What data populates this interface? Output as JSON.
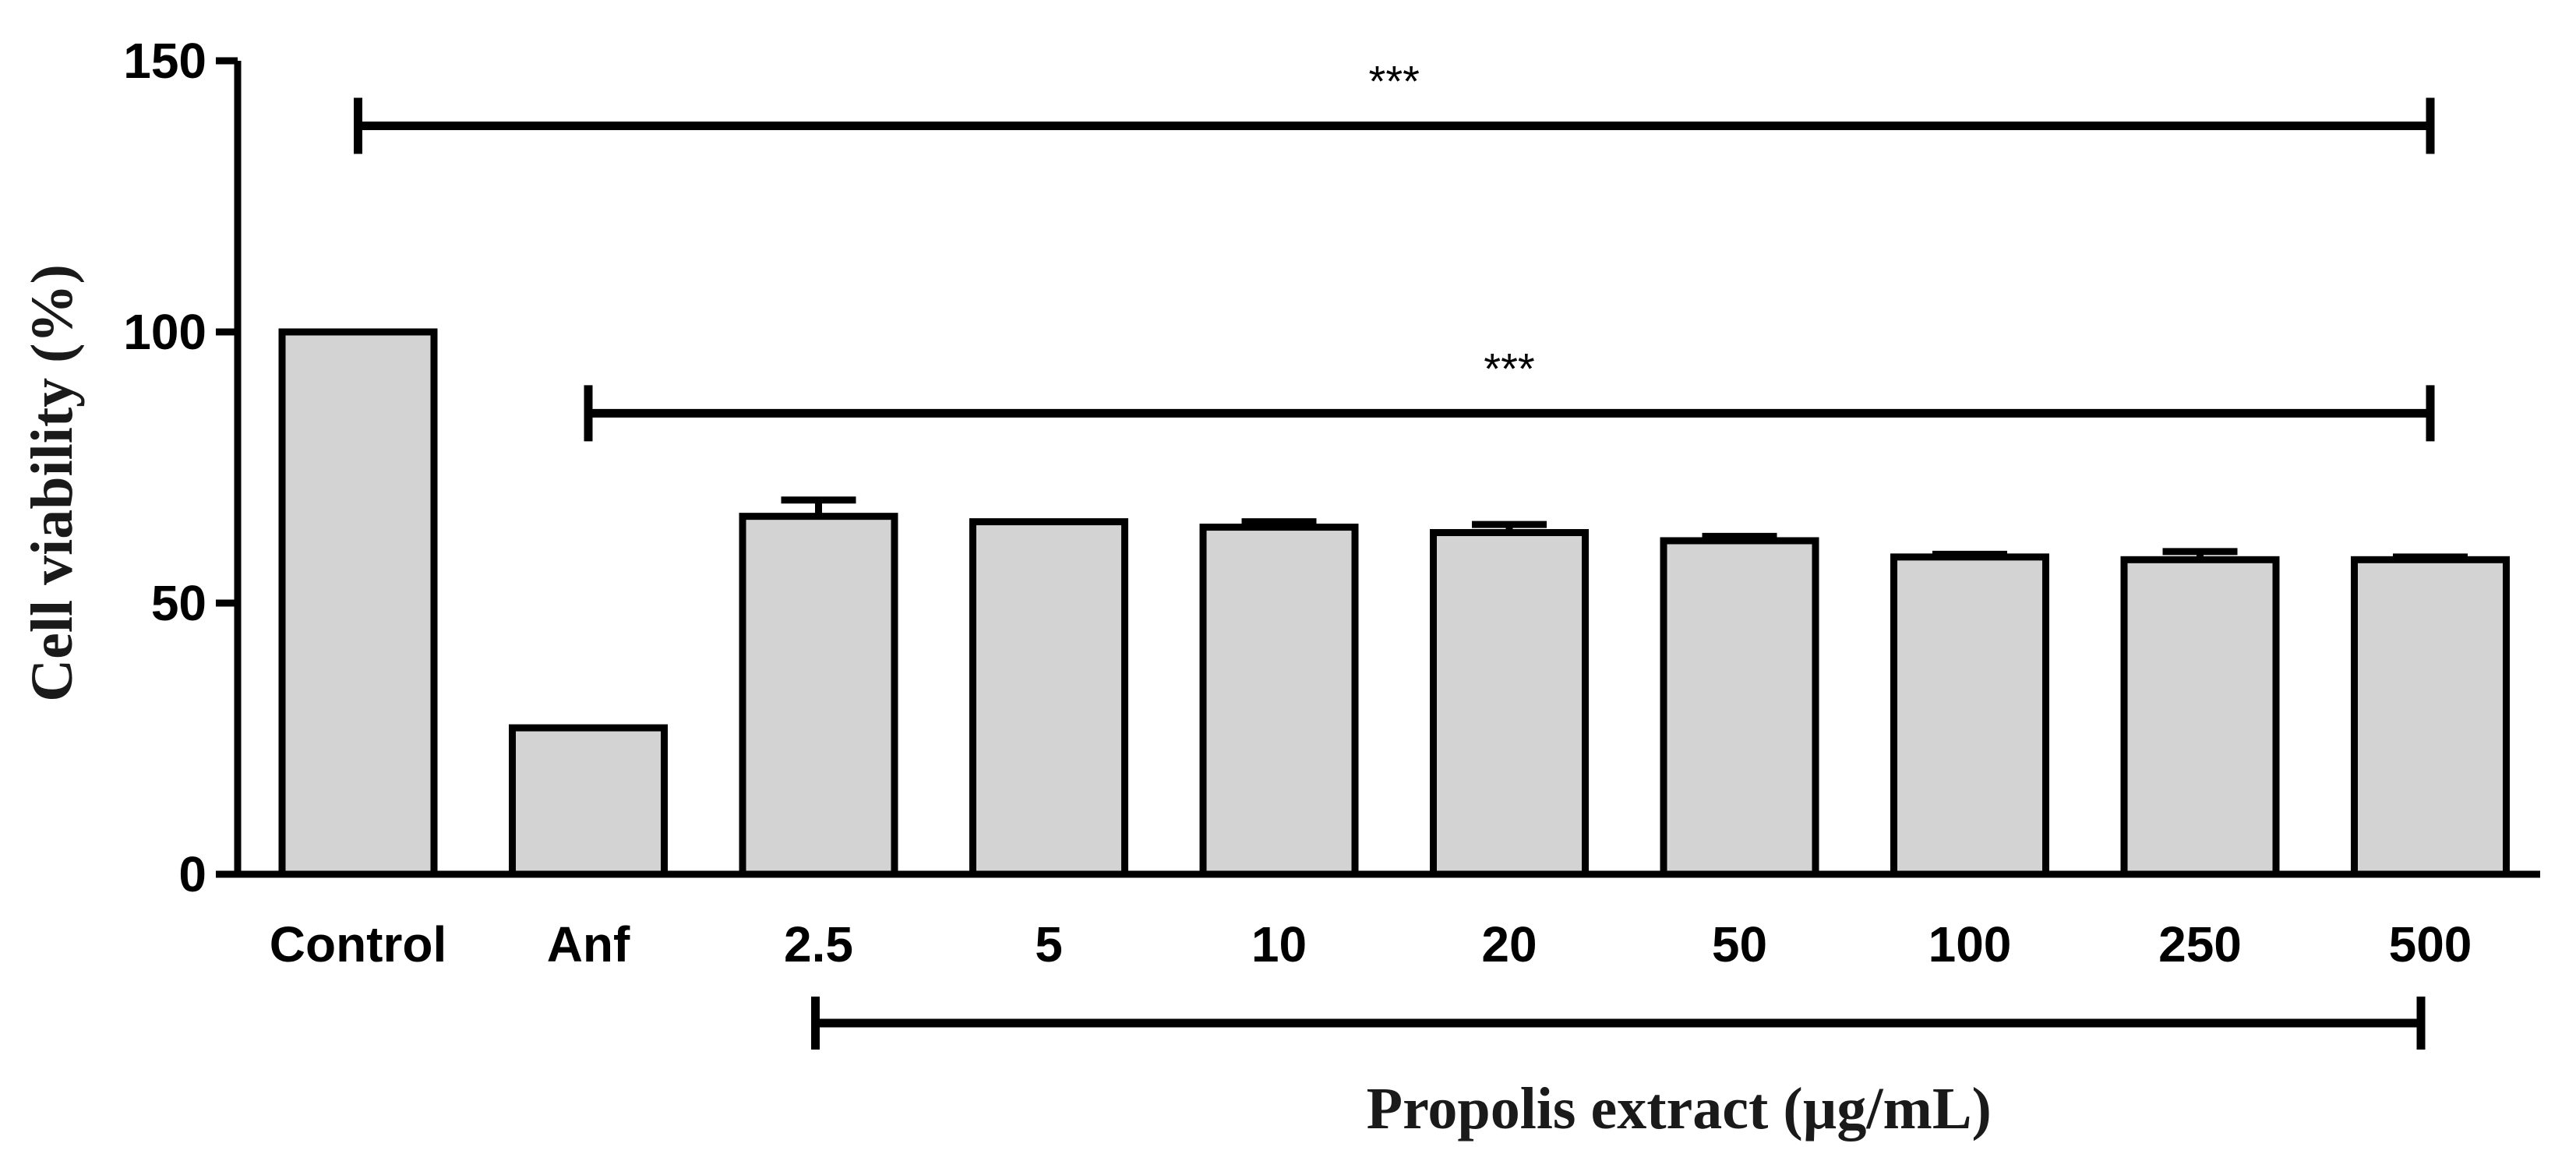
{
  "chart_data": {
    "type": "bar",
    "title": "",
    "xlabel": "",
    "ylabel": "Cell viability (%)",
    "ylim": [
      0,
      150
    ],
    "yticks": [
      0,
      50,
      100,
      150
    ],
    "grid": false,
    "categories": [
      "Control",
      "Anf",
      "2.5",
      "5",
      "10",
      "20",
      "50",
      "100",
      "250",
      "500"
    ],
    "values": [
      100,
      27,
      66,
      65,
      64,
      63,
      61.5,
      58.5,
      58,
      58
    ],
    "errors": [
      0,
      0,
      3,
      0,
      1,
      1.5,
      0.8,
      0.5,
      1.5,
      0.5
    ],
    "bar_color": "#d3d3d3",
    "edge_color": "#000000",
    "group_label": "Propolis extract (µg/mL)",
    "group_span": [
      "2.5",
      "500"
    ],
    "significance": [
      {
        "label": "***",
        "from": "Control",
        "to": "500",
        "y": 138
      },
      {
        "label": "***",
        "from": "Anf",
        "to": "500",
        "y": 85
      }
    ]
  }
}
